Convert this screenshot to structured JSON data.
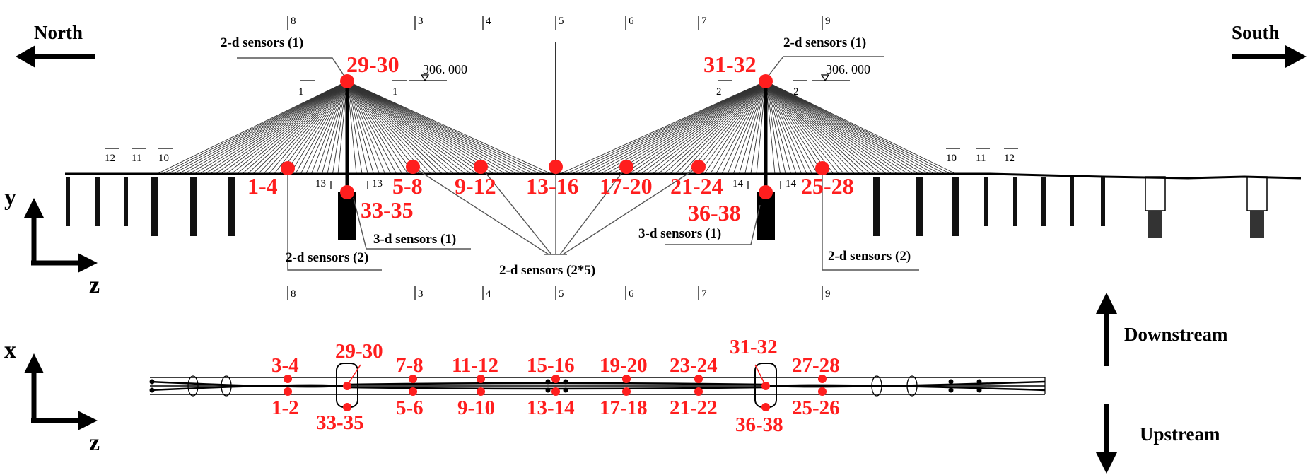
{
  "directions": {
    "north": "North",
    "south": "South",
    "downstream": "Downstream",
    "upstream": "Upstream"
  },
  "axes": {
    "elevation": {
      "vertical": "y",
      "horizontal": "z"
    },
    "plan": {
      "vertical": "x",
      "horizontal": "z"
    }
  },
  "elevation_sensors": {
    "s1_4": "1-4",
    "s5_8": "5-8",
    "s9_12": "9-12",
    "s13_16": "13-16",
    "s17_20": "17-20",
    "s21_24": "21-24",
    "s25_28": "25-28",
    "s29_30": "29-30",
    "s31_32": "31-32",
    "s33_35": "33-35",
    "s36_38": "36-38"
  },
  "plan_sensors": {
    "s3_4": "3-4",
    "s1_2": "1-2",
    "s29_30": "29-30",
    "s33_35": "33-35",
    "s7_8": "7-8",
    "s5_6": "5-6",
    "s11_12": "11-12",
    "s9_10": "9-10",
    "s15_16": "15-16",
    "s13_14": "13-14",
    "s19_20": "19-20",
    "s17_18": "17-18",
    "s23_24": "23-24",
    "s21_22": "21-22",
    "s31_32": "31-32",
    "s36_38": "36-38",
    "s27_28": "27-28",
    "s25_26": "25-26"
  },
  "callouts": {
    "tower_left": "2-d sensors (1)",
    "tower_right": "2-d sensors (1)",
    "deck_left": "2-d sensors (2)",
    "deck_right": "2-d sensors (2)",
    "pier_left": "3-d sensors (1)",
    "pier_right": "3-d sensors (1)",
    "midspan": "2-d sensors (2*5)"
  },
  "elevation_marks": {
    "left": "306. 000",
    "right": "306. 000"
  },
  "section_marks": {
    "s1": "1",
    "s2": "2",
    "s3": "3",
    "s4": "4",
    "s5": "5",
    "s6": "6",
    "s7": "7",
    "s8": "8",
    "s9": "9",
    "s10": "10",
    "s11": "11",
    "s12": "12",
    "s13": "13",
    "s14": "14"
  },
  "colors": {
    "sensor": "#ff1e1e",
    "structure": "#000000",
    "leader": "#555555"
  }
}
